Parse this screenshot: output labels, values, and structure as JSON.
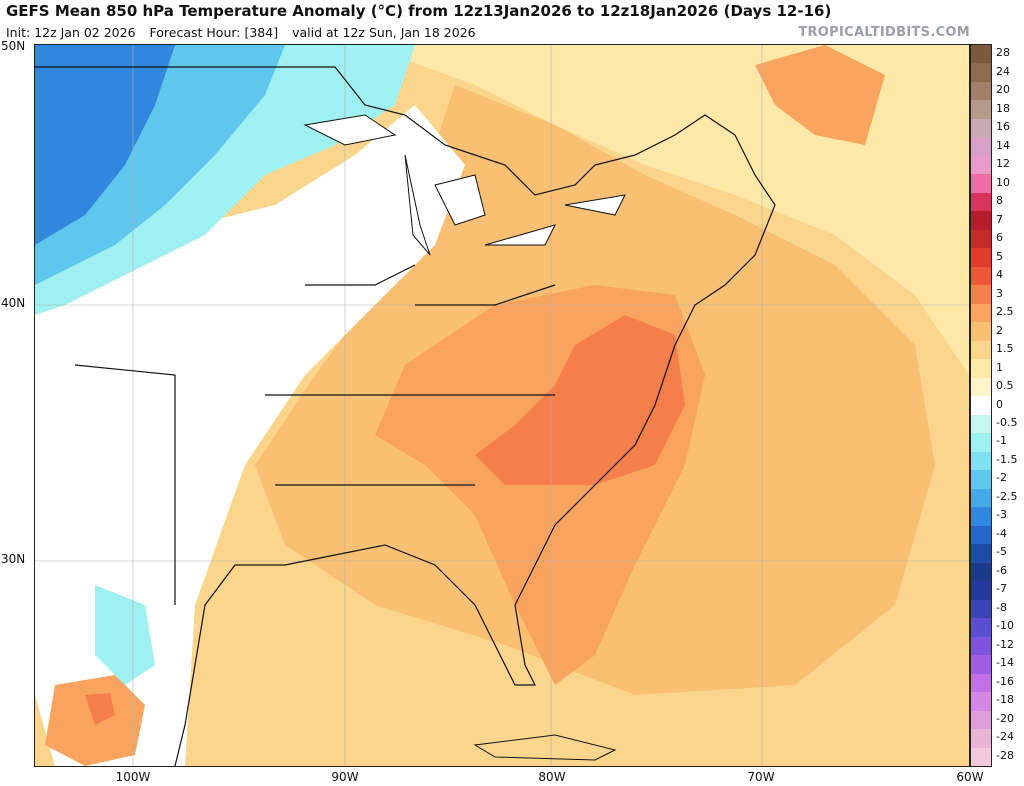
{
  "header": {
    "title": "GEFS Mean 850 hPa Temperature Anomaly (°C) from 12z13Jan2026 to 12z18Jan2026 (Days 12-16)",
    "init": "Init: 12z Jan 02 2026",
    "forecast_hour": "Forecast Hour: [384]",
    "valid": "valid at 12z Sun, Jan 18 2026",
    "brand": "TROPICALTIDBITS.COM"
  },
  "axes": {
    "lat_labels": [
      "50N",
      "40N",
      "30N"
    ],
    "lon_labels": [
      "100W",
      "90W",
      "80W",
      "70W",
      "60W"
    ]
  },
  "legend": {
    "labels": [
      "28",
      "24",
      "20",
      "18",
      "16",
      "14",
      "12",
      "10",
      "8",
      "7",
      "6",
      "5",
      "4",
      "3",
      "2.5",
      "2",
      "1.5",
      "1",
      "0.5",
      "0",
      "-0.5",
      "-1",
      "-1.5",
      "-2",
      "-2.5",
      "-3",
      "-4",
      "-5",
      "-6",
      "-7",
      "-8",
      "-10",
      "-12",
      "-14",
      "-16",
      "-18",
      "-20",
      "-24",
      "-28"
    ],
    "colors": [
      "#7a5a3d",
      "#8c6b4f",
      "#a0806a",
      "#b59a8a",
      "#c7a9b4",
      "#d8a0c6",
      "#ea9ac7",
      "#f06aa3",
      "#d8345b",
      "#b61c2c",
      "#c62b2b",
      "#e23a2b",
      "#f0573a",
      "#f57e4a",
      "#f8a45f",
      "#f9bf72",
      "#fbd58c",
      "#fde8a8",
      "#fff4cc",
      "#ffffff",
      "#c6f6f0",
      "#9ff0f0",
      "#7ee0f2",
      "#5fc6ee",
      "#45a9e8",
      "#3187dd",
      "#2567c8",
      "#1f4ca6",
      "#1b3a8a",
      "#233a9a",
      "#3b45b5",
      "#5a4fd0",
      "#7d55dc",
      "#a05fe2",
      "#c170e6",
      "#d588e2",
      "#e09fd8",
      "#eab4d6",
      "#f2c8dc"
    ]
  }
}
